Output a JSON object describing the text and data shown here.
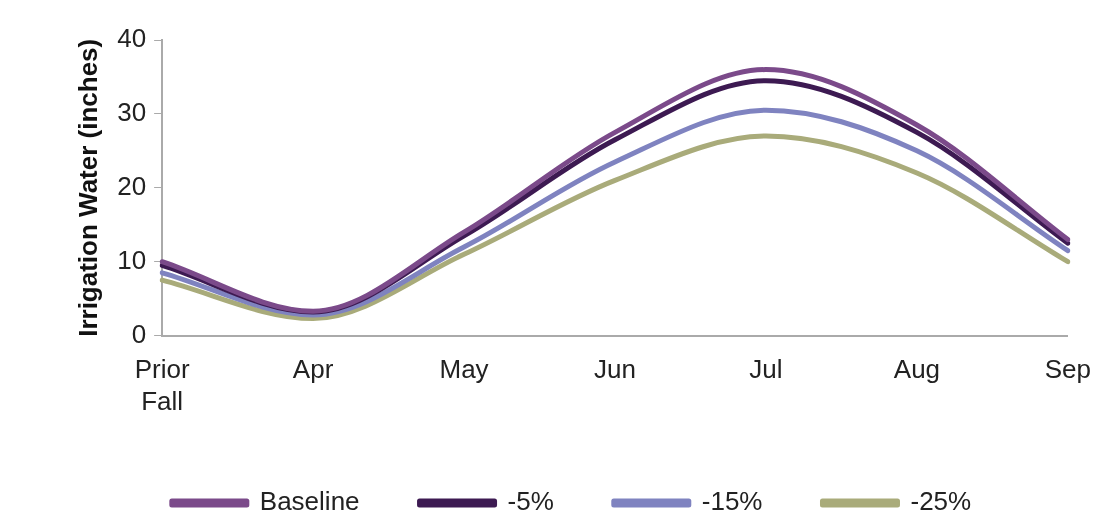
{
  "chart_data": {
    "type": "line",
    "ylabel": "Irrigation Water (inches)",
    "categories": [
      "Prior Fall",
      "Apr",
      "May",
      "Jun",
      "Jul",
      "Aug",
      "Sep"
    ],
    "series": [
      {
        "name": "Baseline",
        "color": "#7b4a8a",
        "values": [
          10,
          3.3,
          14,
          27.5,
          36,
          28.5,
          13
        ]
      },
      {
        "name": "-5%",
        "color": "#3d1a52",
        "values": [
          9.5,
          3.2,
          13.5,
          26.5,
          34.5,
          27.5,
          12.5
        ]
      },
      {
        "name": "-15%",
        "color": "#7f83c0",
        "values": [
          8.5,
          2.8,
          12,
          23.5,
          30.5,
          25,
          11.5
        ]
      },
      {
        "name": "-25%",
        "color": "#a9ab7a",
        "values": [
          7.5,
          2.3,
          11,
          21,
          27,
          22,
          10
        ]
      }
    ],
    "ylim": [
      0,
      40
    ],
    "yticks": [
      0,
      10,
      20,
      30,
      40
    ],
    "grid": false,
    "legend": "bottom",
    "marker": "none",
    "line_style": "solid"
  }
}
